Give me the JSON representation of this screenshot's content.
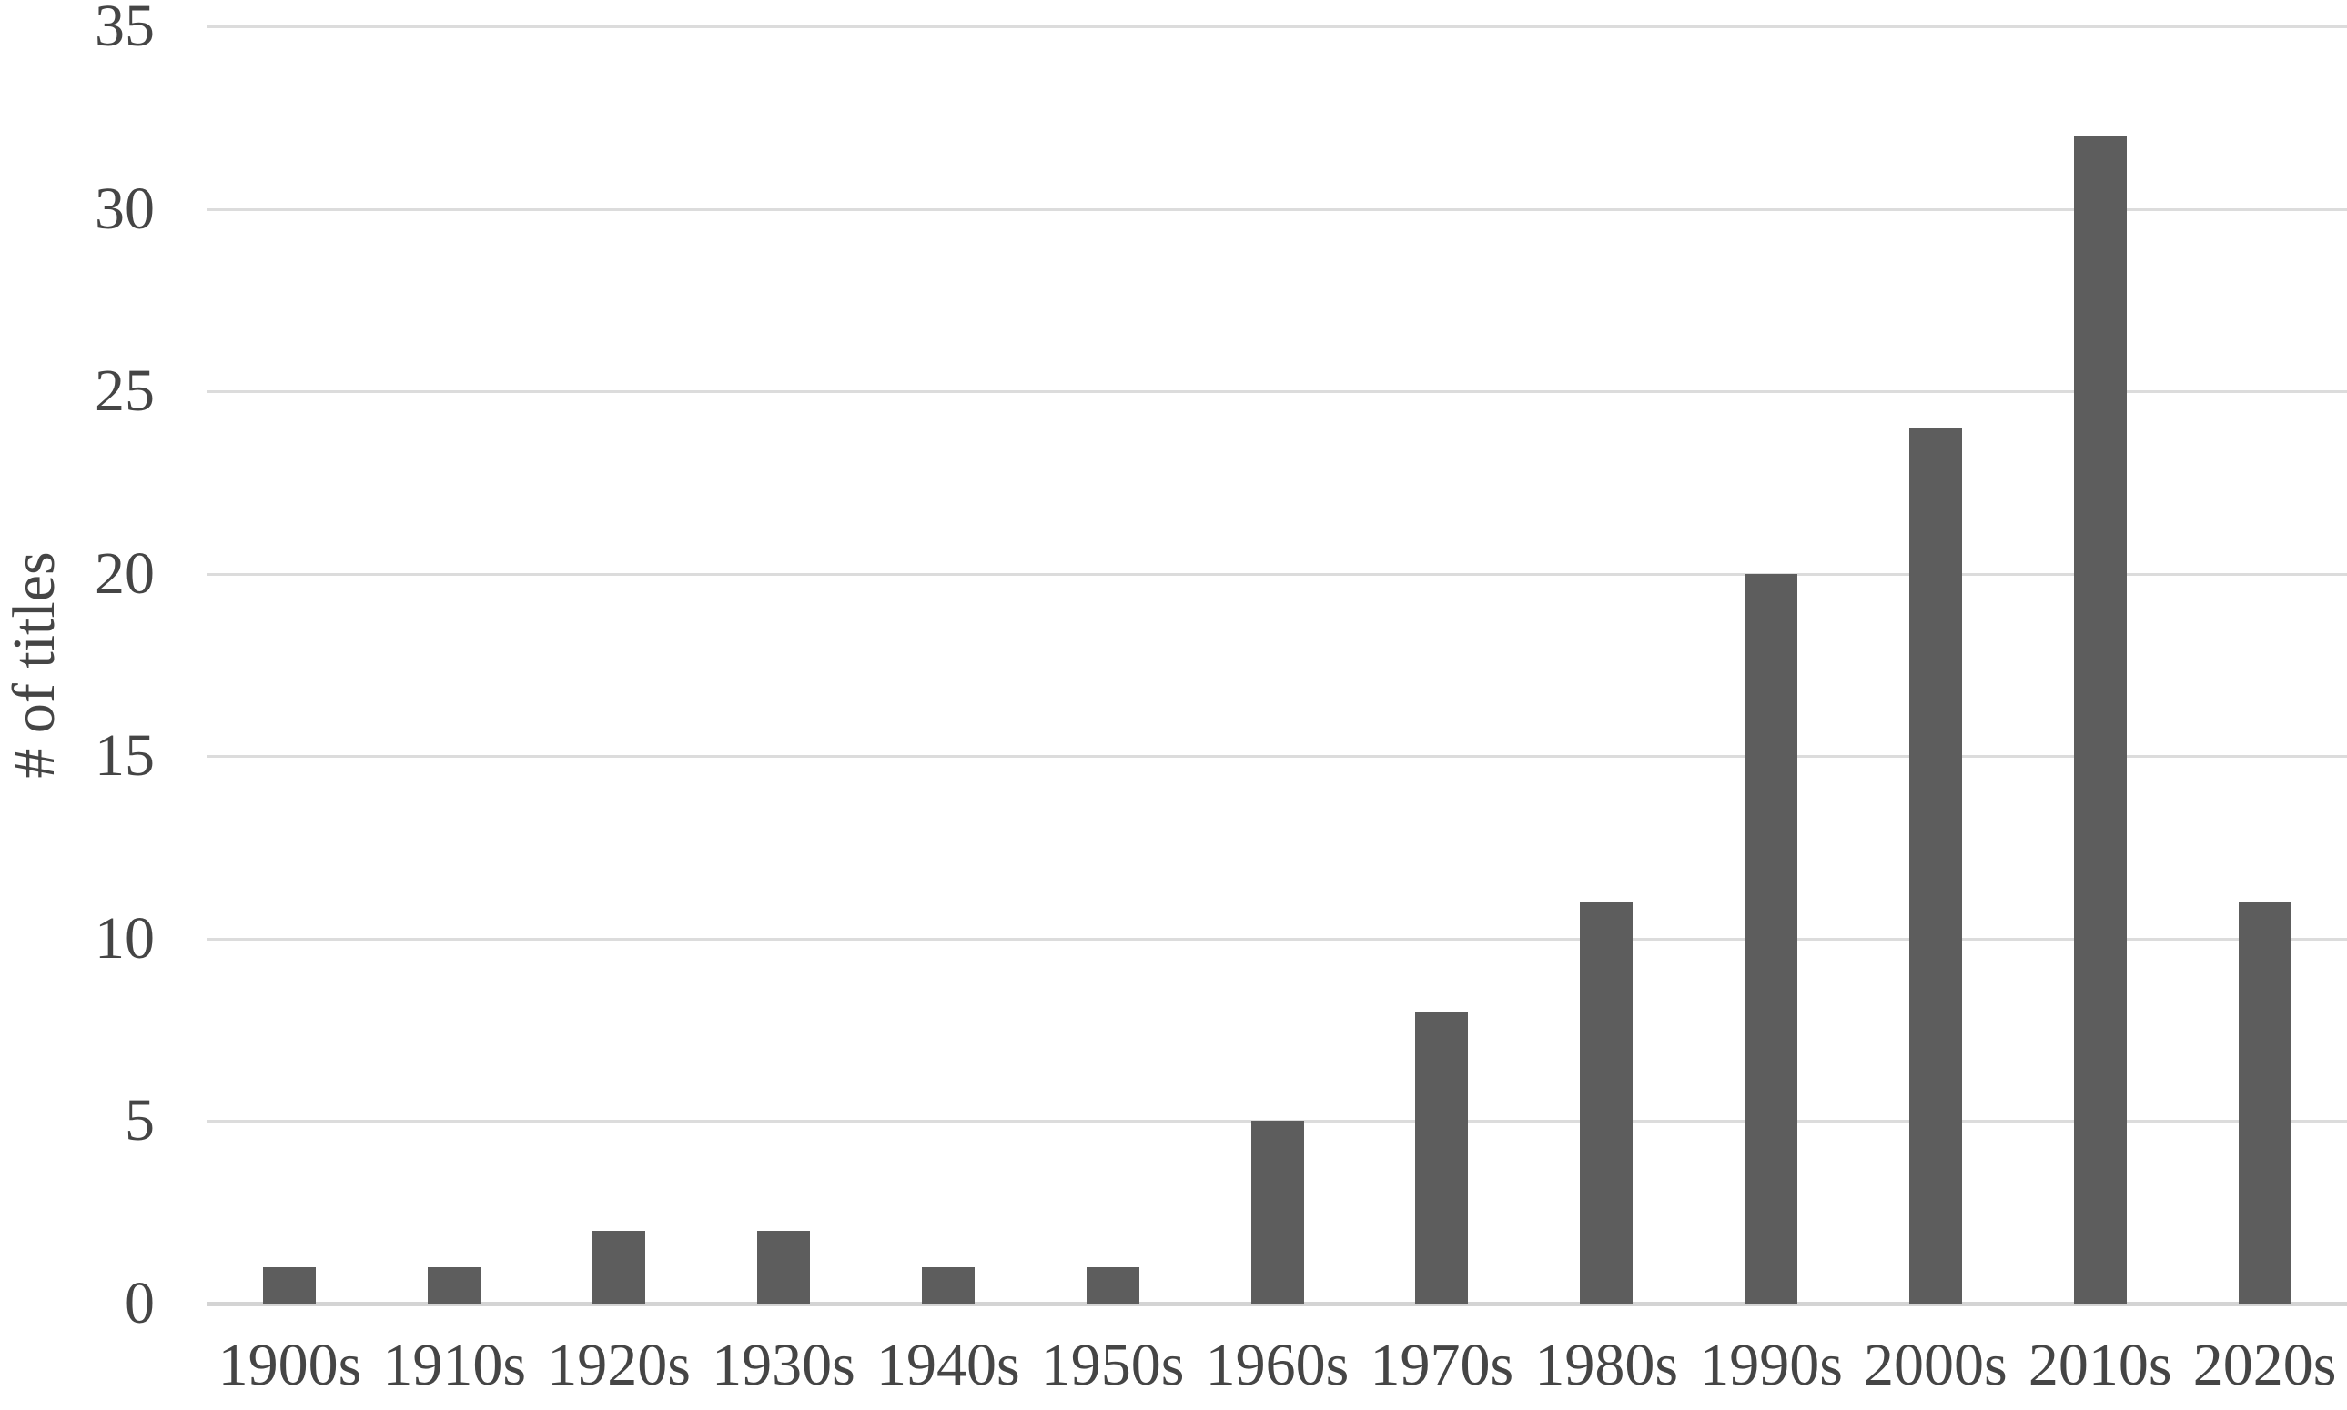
{
  "chart_data": {
    "type": "bar",
    "title": "",
    "xlabel": "",
    "ylabel": "# of titles",
    "categories": [
      "1900s",
      "1910s",
      "1920s",
      "1930s",
      "1940s",
      "1950s",
      "1960s",
      "1970s",
      "1980s",
      "1990s",
      "2000s",
      "2010s",
      "2020s"
    ],
    "values": [
      1,
      1,
      2,
      2,
      1,
      1,
      5,
      8,
      11,
      20,
      24,
      32,
      11
    ],
    "yticks": [
      0,
      5,
      10,
      15,
      20,
      25,
      30,
      35
    ],
    "ylim": [
      0,
      35
    ],
    "grid": true,
    "legend_position": "none",
    "colors": {
      "bar": "#5d5d5d",
      "gridline": "#dcdcdc",
      "axis_line": "#d4d4d4",
      "text": "#454545",
      "background": "#ffffff"
    }
  }
}
